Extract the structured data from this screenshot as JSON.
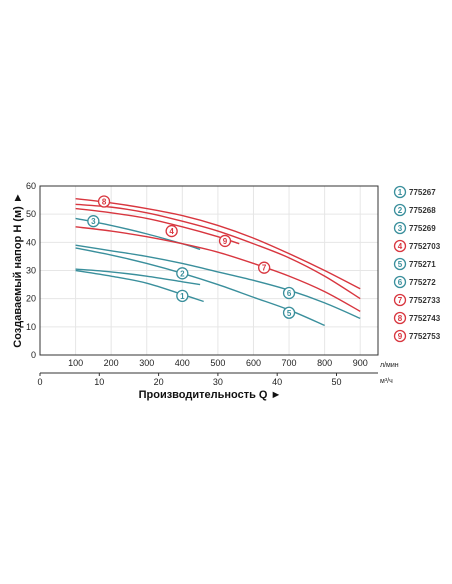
{
  "chart_data": {
    "type": "line",
    "title": "",
    "ylabel": "Создаваемый напор H (м) ►",
    "xlabel": "Производительность Q ►",
    "x_unit": "л/мин",
    "x2_unit": "м³/ч",
    "xlim": [
      0,
      950
    ],
    "ylim": [
      0,
      60
    ],
    "x_ticks": [
      100,
      200,
      300,
      400,
      500,
      600,
      700,
      800,
      900
    ],
    "y_ticks": [
      0,
      10,
      20,
      30,
      40,
      50,
      60
    ],
    "x2_ticks": [
      0,
      10,
      20,
      30,
      40,
      50
    ],
    "x2_per_x": 0.06,
    "legend_position": "right",
    "colors": {
      "teal": "#3a8f9c",
      "red": "#d8363f"
    },
    "series": [
      {
        "name": "775267",
        "label": "1",
        "color": "#3a8f9c",
        "label_at": [
          400,
          21
        ],
        "x": [
          100,
          200,
          300,
          400,
          460
        ],
        "y": [
          30,
          28,
          25.5,
          21.5,
          19
        ]
      },
      {
        "name": "775268",
        "label": "2",
        "color": "#3a8f9c",
        "label_at": [
          400,
          29
        ],
        "x": [
          100,
          200,
          300,
          400,
          450
        ],
        "y": [
          30.5,
          29.5,
          28,
          26,
          25
        ]
      },
      {
        "name": "775269",
        "label": "3",
        "color": "#3a8f9c",
        "label_at": [
          150,
          47.5
        ],
        "x": [
          100,
          200,
          300,
          400,
          450
        ],
        "y": [
          48.5,
          46,
          43,
          39.5,
          37.5
        ]
      },
      {
        "name": "7752703",
        "label": "4",
        "color": "#d8363f",
        "label_at": [
          370,
          44
        ],
        "x": [
          100,
          200,
          300,
          400,
          500,
          560
        ],
        "y": [
          52,
          50.5,
          48.5,
          45.5,
          42,
          39.5
        ]
      },
      {
        "name": "775271",
        "label": "5",
        "color": "#3a8f9c",
        "label_at": [
          700,
          15
        ],
        "x": [
          100,
          200,
          300,
          400,
          500,
          600,
          700,
          800
        ],
        "y": [
          38,
          35.5,
          32.5,
          29,
          25,
          20.5,
          16,
          10.5
        ]
      },
      {
        "name": "775272",
        "label": "6",
        "color": "#3a8f9c",
        "label_at": [
          700,
          22
        ],
        "x": [
          100,
          200,
          300,
          400,
          500,
          600,
          700,
          800,
          900
        ],
        "y": [
          39,
          37,
          35,
          32.5,
          29.5,
          26.5,
          23,
          18.5,
          13
        ]
      },
      {
        "name": "7752733",
        "label": "7",
        "color": "#d8363f",
        "label_at": [
          630,
          31
        ],
        "x": [
          100,
          200,
          300,
          400,
          500,
          600,
          700,
          800,
          900
        ],
        "y": [
          45.5,
          44,
          42,
          39.5,
          36.5,
          32.5,
          28,
          22.5,
          15.5
        ]
      },
      {
        "name": "7752743",
        "label": "8",
        "color": "#d8363f",
        "label_at": [
          180,
          54.5
        ],
        "x": [
          100,
          200,
          300,
          400,
          500,
          600,
          700,
          800,
          900
        ],
        "y": [
          53.5,
          52.5,
          50.5,
          47.5,
          44,
          39.5,
          34.5,
          28,
          20
        ]
      },
      {
        "name": "7752753",
        "label": "9",
        "color": "#d8363f",
        "label_at": [
          520,
          40.5
        ],
        "x": [
          100,
          200,
          300,
          400,
          500,
          600,
          700,
          800,
          900
        ],
        "y": [
          55.5,
          54,
          52,
          49.5,
          46,
          41.5,
          36,
          30,
          23.5
        ]
      }
    ]
  }
}
